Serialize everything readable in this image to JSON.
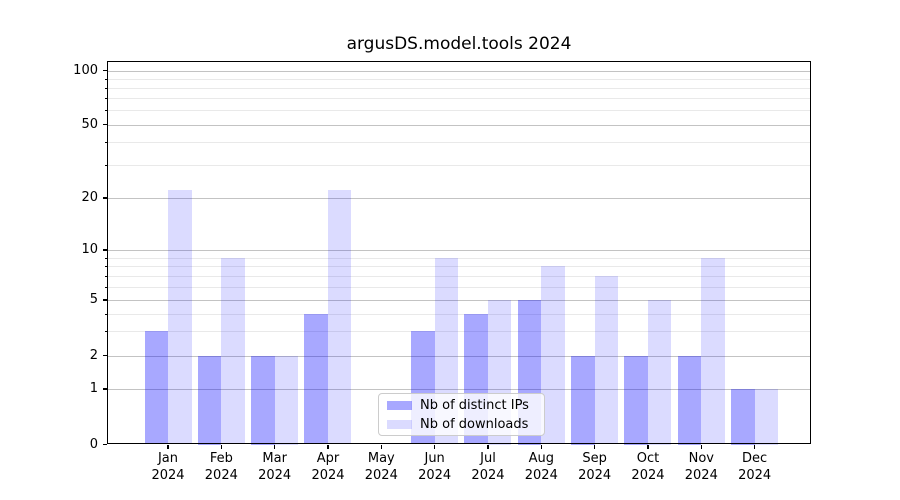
{
  "title": "argusDS.model.tools 2024",
  "legend": {
    "items": [
      {
        "label": "Nb of distinct IPs",
        "color": "rgba(0,0,255,0.34)"
      },
      {
        "label": "Nb of downloads",
        "color": "rgba(0,0,255,0.14)"
      }
    ]
  },
  "axes": {
    "y_major_ticks": [
      0,
      1,
      2,
      5,
      10,
      20,
      50,
      100
    ],
    "y_minor_ticks": [
      3,
      4,
      6,
      7,
      8,
      9,
      30,
      40,
      60,
      70,
      80,
      90
    ],
    "x_labels": [
      {
        "month": "Jan",
        "year": "2024"
      },
      {
        "month": "Feb",
        "year": "2024"
      },
      {
        "month": "Mar",
        "year": "2024"
      },
      {
        "month": "Apr",
        "year": "2024"
      },
      {
        "month": "May",
        "year": "2024"
      },
      {
        "month": "Jun",
        "year": "2024"
      },
      {
        "month": "Jul",
        "year": "2024"
      },
      {
        "month": "Aug",
        "year": "2024"
      },
      {
        "month": "Sep",
        "year": "2024"
      },
      {
        "month": "Oct",
        "year": "2024"
      },
      {
        "month": "Nov",
        "year": "2024"
      },
      {
        "month": "Dec",
        "year": "2024"
      }
    ]
  },
  "colors": {
    "bar_distinct_ips": "rgba(0,0,255,0.34)",
    "bar_downloads": "rgba(0,0,255,0.14)",
    "grid_major": "#c3c3c3",
    "grid_minor": "#e9e9e9",
    "spine": "#000000"
  },
  "chart_data": {
    "type": "bar",
    "title": "argusDS.model.tools 2024",
    "categories": [
      "Jan 2024",
      "Feb 2024",
      "Mar 2024",
      "Apr 2024",
      "May 2024",
      "Jun 2024",
      "Jul 2024",
      "Aug 2024",
      "Sep 2024",
      "Oct 2024",
      "Nov 2024",
      "Dec 2024"
    ],
    "series": [
      {
        "name": "Nb of distinct IPs",
        "values": [
          3,
          2,
          2,
          4,
          0,
          3,
          4,
          5,
          2,
          2,
          2,
          1
        ]
      },
      {
        "name": "Nb of downloads",
        "values": [
          22,
          9,
          2,
          22,
          0,
          9,
          5,
          8,
          7,
          5,
          9,
          1
        ]
      }
    ],
    "xlabel": "",
    "ylabel": "",
    "yscale": "symlog",
    "y_tick_labels": [
      "0",
      "1",
      "2",
      "5",
      "10",
      "20",
      "50",
      "100"
    ],
    "ylim": [
      0,
      130
    ],
    "grid": true,
    "legend_position": "lower center inside axes"
  }
}
